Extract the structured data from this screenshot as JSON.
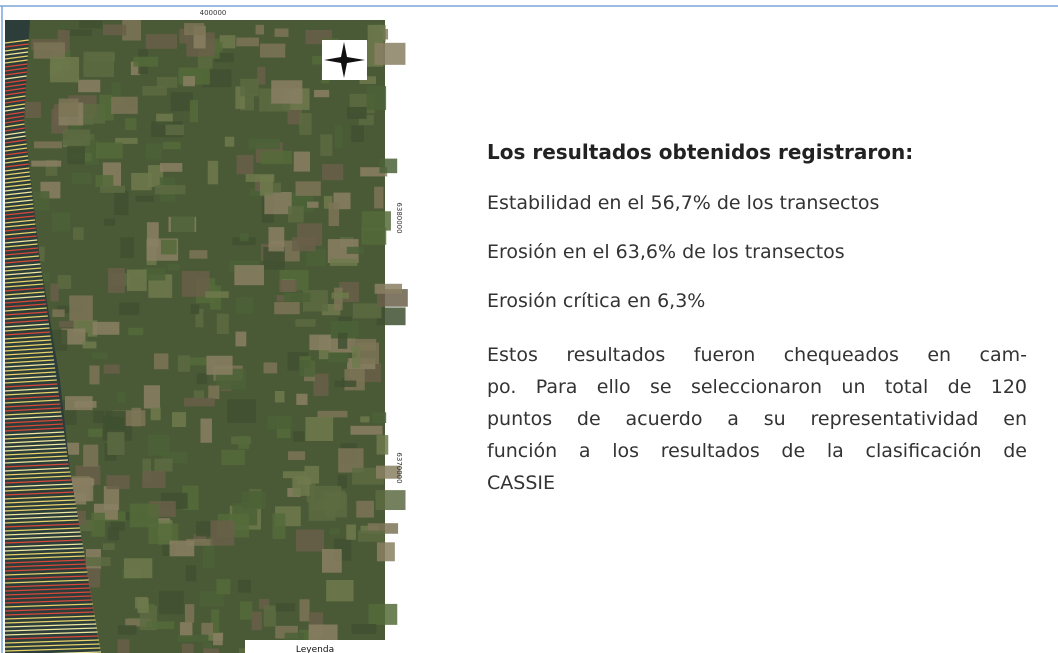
{
  "map": {
    "coord_top": "400000",
    "coord_right_upper": "6380000",
    "coord_right_lower": "6370000",
    "legend_title": "Leyenda"
  },
  "content": {
    "heading": "Los resultados obtenidos registraron:",
    "items": [
      "Estabilidad en el 56,7% de los  transectos",
      "Erosión en el 63,6% de los transectos",
      "Erosión crítica en 6,3%"
    ],
    "paragraph_lines": [
      "Estos resultados fueron chequeados en cam-",
      "po. Para ello se seleccionaron un total de 120",
      "puntos de acuerdo a su representatividad en",
      "función a los resultados de la clasificación de",
      "CASSIE"
    ]
  }
}
